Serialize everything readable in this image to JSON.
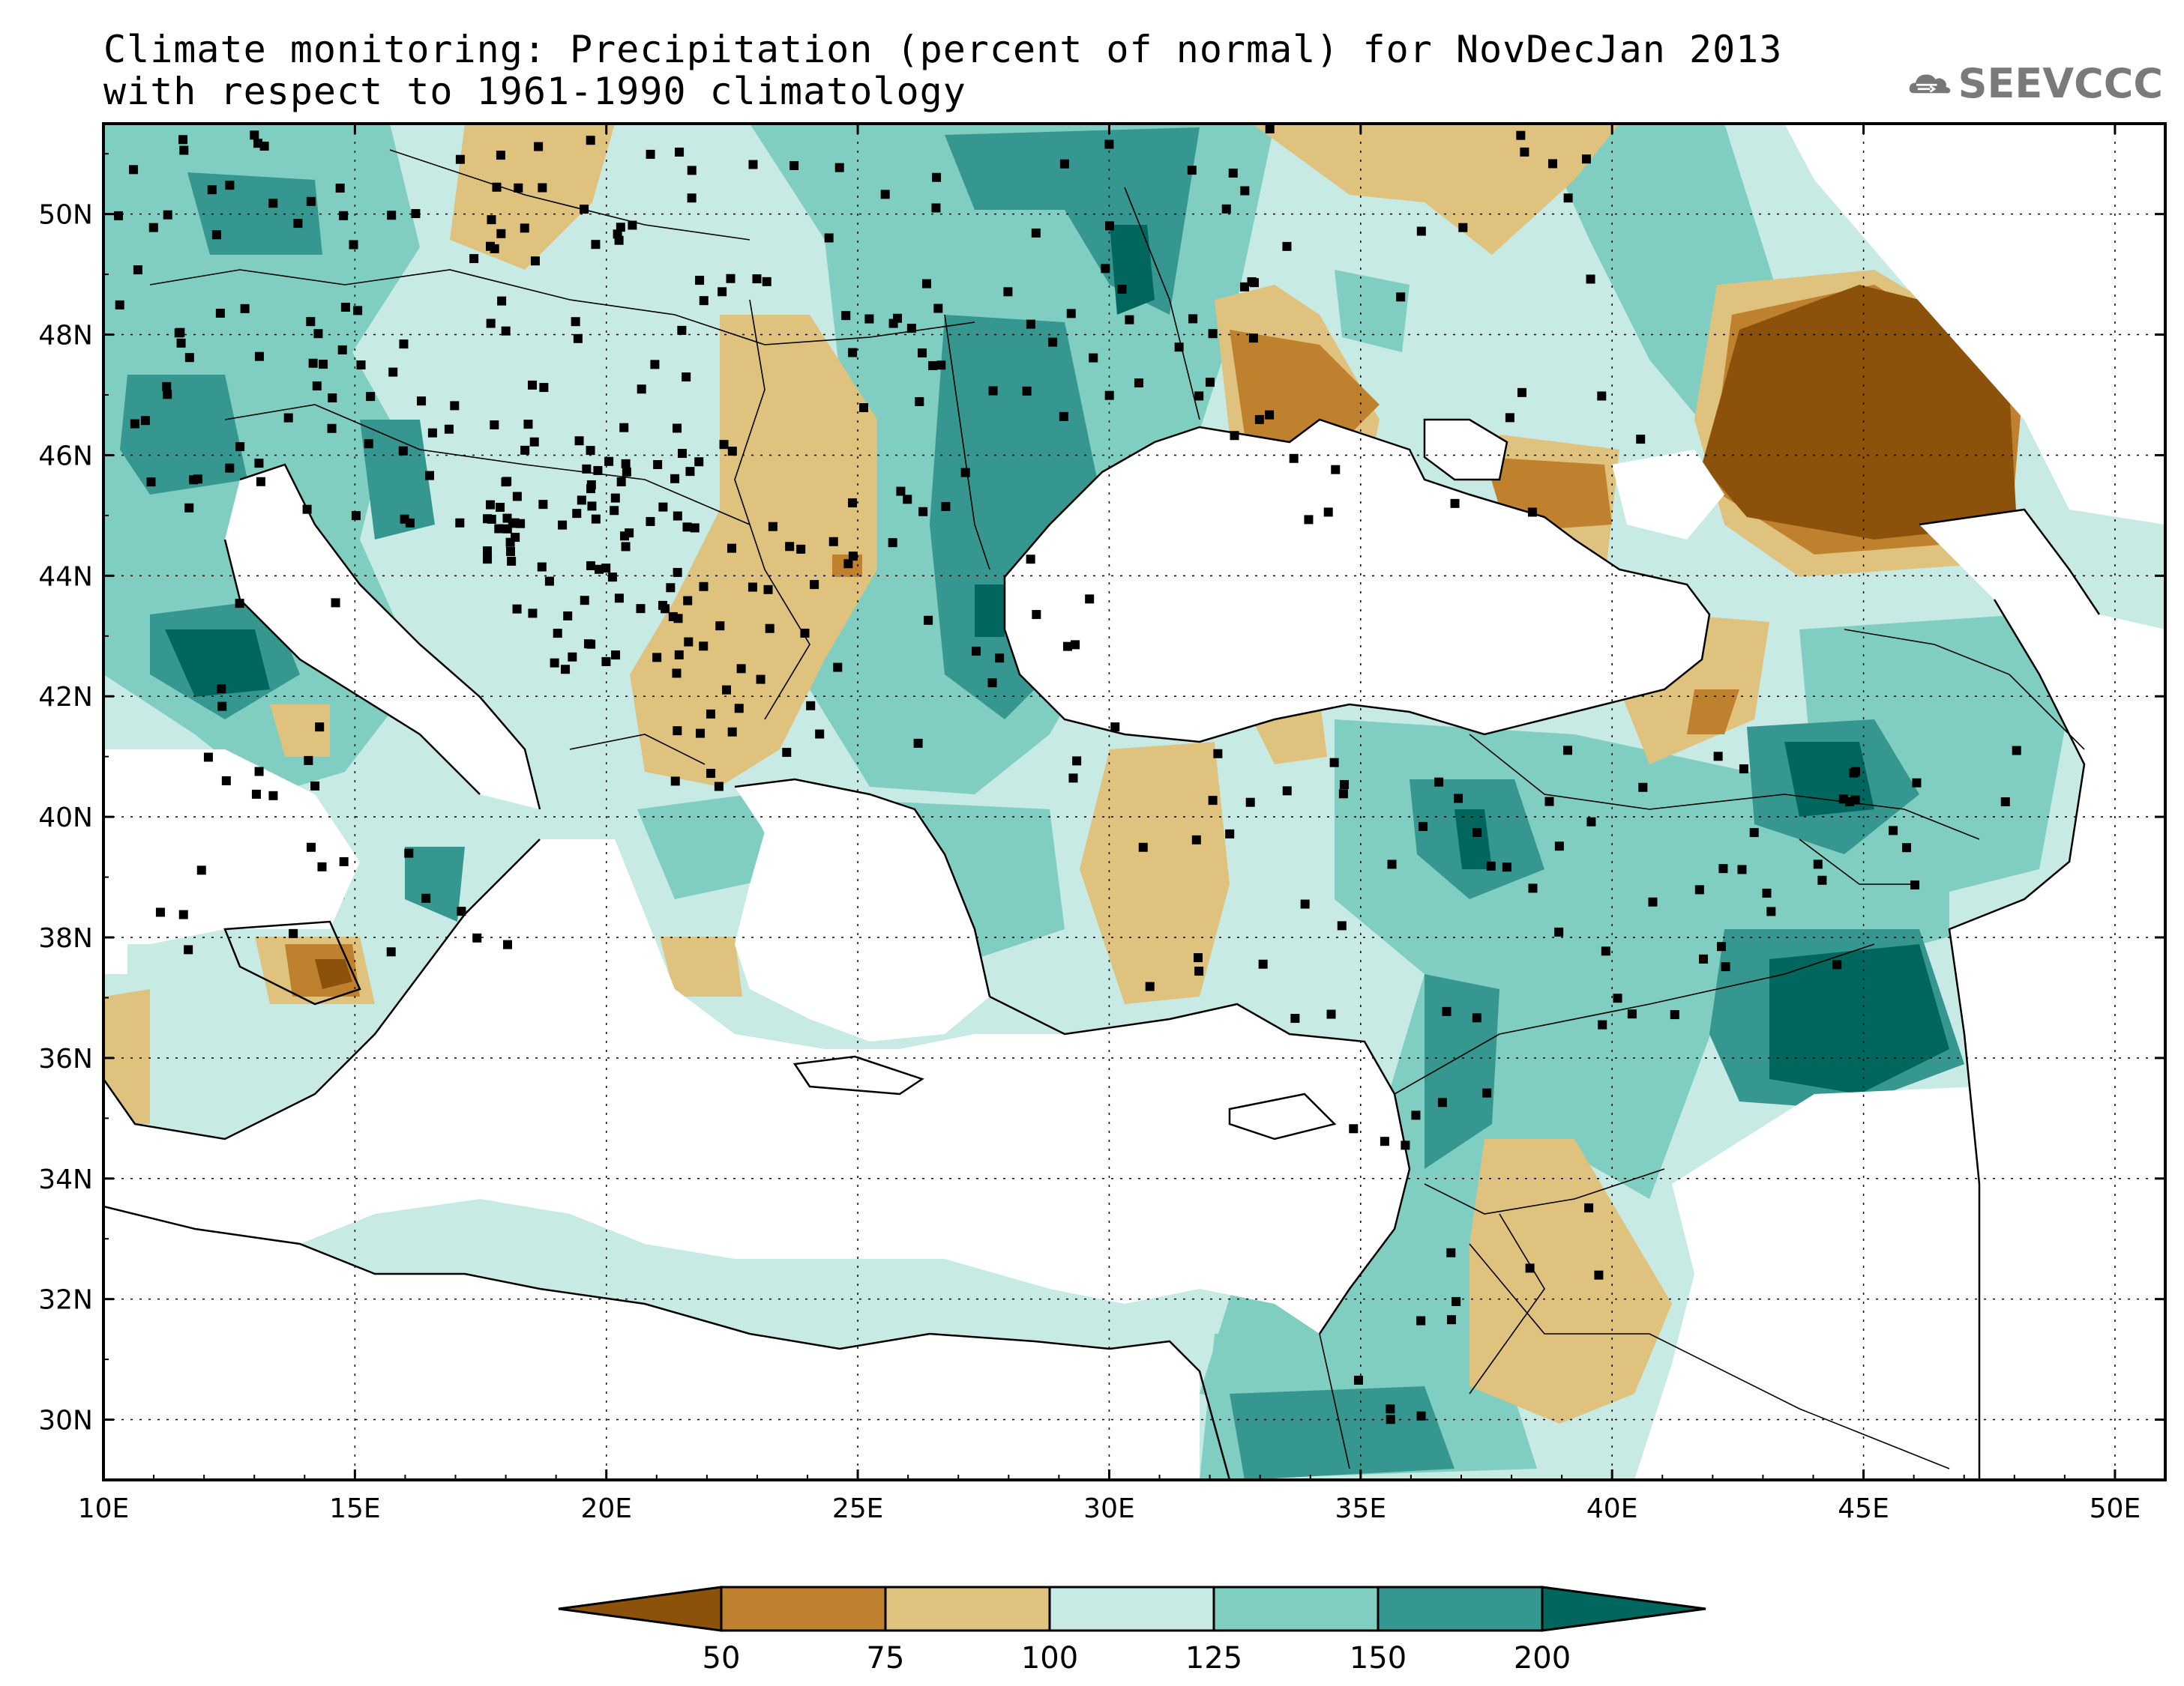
{
  "title": {
    "line1": "Climate monitoring: Precipitation (percent of normal) for NovDecJan 2013",
    "line2": "with respect to 1961-1990 climatology"
  },
  "logo": {
    "text": "SEEVCCC",
    "icon": "cloud-icon"
  },
  "map": {
    "projection": "lat-lon",
    "lon_range": [
      10,
      51
    ],
    "lat_range": [
      29,
      51.5
    ],
    "lon_ticks": [
      "10E",
      "15E",
      "20E",
      "25E",
      "30E",
      "35E",
      "40E",
      "45E",
      "50E"
    ],
    "lat_ticks": [
      "30N",
      "32N",
      "34N",
      "36N",
      "38N",
      "40N",
      "42N",
      "44N",
      "46N",
      "48N",
      "50N"
    ],
    "gridlines": "dotted"
  },
  "legend": {
    "labels": [
      "50",
      "75",
      "100",
      "125",
      "150",
      "200"
    ],
    "colors": [
      "#8c510a",
      "#bf812d",
      "#dfc27d",
      "#c7eae5",
      "#80cdc1",
      "#35978f",
      "#01665e"
    ]
  }
}
